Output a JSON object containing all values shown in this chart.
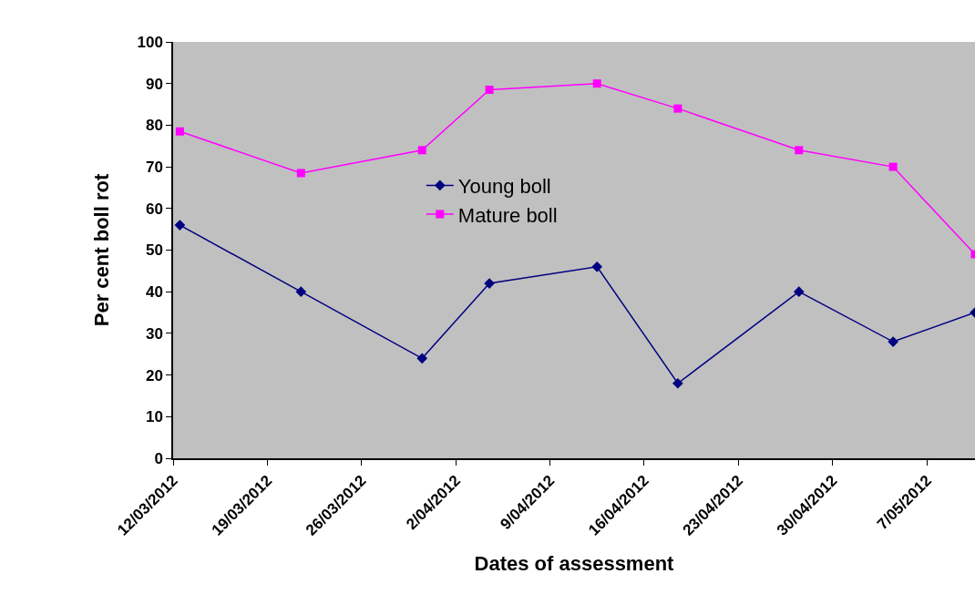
{
  "chart_data": {
    "type": "line",
    "xlabel": "Dates of assessment",
    "ylabel": "Per cent boll rot",
    "x": [
      "2012-03-12T12:00",
      "2012-03-21T12:00",
      "2012-03-30T12:00",
      "2012-04-04T12:00",
      "2012-04-12T12:00",
      "2012-04-18T12:00",
      "2012-04-27T12:00",
      "2012-05-04T12:00",
      "2012-05-10T14:00"
    ],
    "series": [
      {
        "name": "Young boll",
        "color": "#000080",
        "marker": "diamond",
        "values": [
          56,
          40,
          24,
          42,
          46,
          18,
          40,
          28,
          35
        ]
      },
      {
        "name": "Mature boll",
        "color": "#ff00ff",
        "marker": "square",
        "values": [
          78.5,
          68.5,
          74,
          88.5,
          90,
          84,
          74,
          70,
          49
        ]
      }
    ],
    "xlim": [
      "2012-03-12",
      "2012-05-10T14:00"
    ],
    "xticks": [
      {
        "value": "2012-03-12",
        "label": "12/03/2012"
      },
      {
        "value": "2012-03-19",
        "label": "19/03/2012"
      },
      {
        "value": "2012-03-26",
        "label": "26/03/2012"
      },
      {
        "value": "2012-04-02",
        "label": "2/04/2012"
      },
      {
        "value": "2012-04-09",
        "label": "9/04/2012"
      },
      {
        "value": "2012-04-16",
        "label": "16/04/2012"
      },
      {
        "value": "2012-04-23",
        "label": "23/04/2012"
      },
      {
        "value": "2012-04-30",
        "label": "30/04/2012"
      },
      {
        "value": "2012-05-07",
        "label": "7/05/2012"
      }
    ],
    "ylim": [
      0,
      100
    ],
    "yticks": [
      0,
      10,
      20,
      30,
      40,
      50,
      60,
      70,
      80,
      90,
      100
    ],
    "grid": false,
    "legend": "center",
    "line_style": "solid"
  }
}
